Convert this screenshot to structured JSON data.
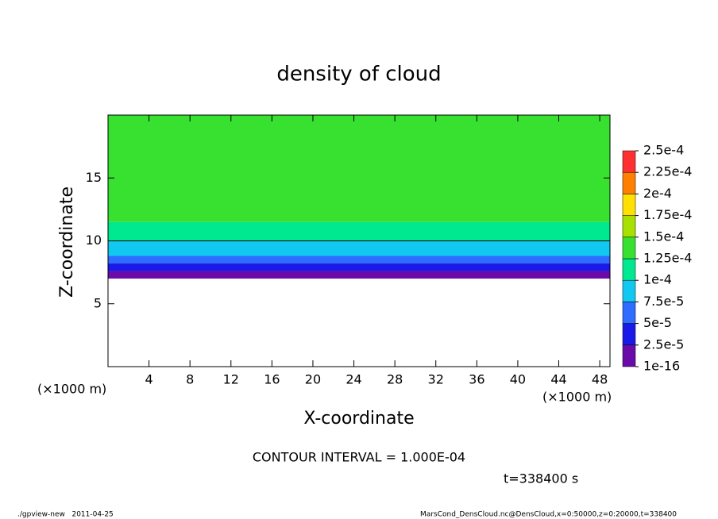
{
  "chart_data": {
    "type": "contour",
    "title": "density of cloud",
    "x_label": "X-coordinate",
    "y_label": "Z-coordinate",
    "x_unit_left": "(×1000 m)",
    "x_unit_right": "(×1000 m)",
    "contour_interval": "CONTOUR INTERVAL = 1.000E-04",
    "time": "t=338400 s",
    "footer_left": "./gpview-new   2011-04-25",
    "footer_right": "MarsCond_DensCloud.nc@DensCloud,x=0:50000,z=0:20000,t=338400",
    "xlim": [
      0,
      49
    ],
    "xticks": [
      4,
      8,
      12,
      16,
      20,
      24,
      28,
      32,
      36,
      40,
      44,
      48
    ],
    "ylim": [
      0,
      20
    ],
    "yticks": [
      5,
      10,
      15
    ],
    "field": {
      "z": [
        7.0,
        7.6,
        8.2,
        8.8,
        10.0,
        11.5,
        20
      ],
      "values": [
        1e-05,
        3.7e-05,
        6.2e-05,
        8.7e-05,
        0.00011,
        0.00013
      ]
    },
    "colorbar": {
      "levels": [
        {
          "value": 1e-16,
          "label": "1e-16"
        },
        {
          "value": 2.5e-05,
          "label": "2.5e-5"
        },
        {
          "value": 5e-05,
          "label": "5e-5"
        },
        {
          "value": 7.5e-05,
          "label": "7.5e-5"
        },
        {
          "value": 0.0001,
          "label": "1e-4"
        },
        {
          "value": 0.000125,
          "label": "1.25e-4"
        },
        {
          "value": 0.00015,
          "label": "1.5e-4"
        },
        {
          "value": 0.000175,
          "label": "1.75e-4"
        },
        {
          "value": 0.0002,
          "label": "2e-4"
        },
        {
          "value": 0.000225,
          "label": "2.25e-4"
        },
        {
          "value": 0.00025,
          "label": "2.5e-4"
        }
      ],
      "colors": [
        "#6a0aa8",
        "#1a1ae8",
        "#2f6cff",
        "#10c8f0",
        "#00e890",
        "#38e030",
        "#a8e000",
        "#ffe000",
        "#ff8000",
        "#ff3030",
        "#ff9090"
      ]
    }
  }
}
